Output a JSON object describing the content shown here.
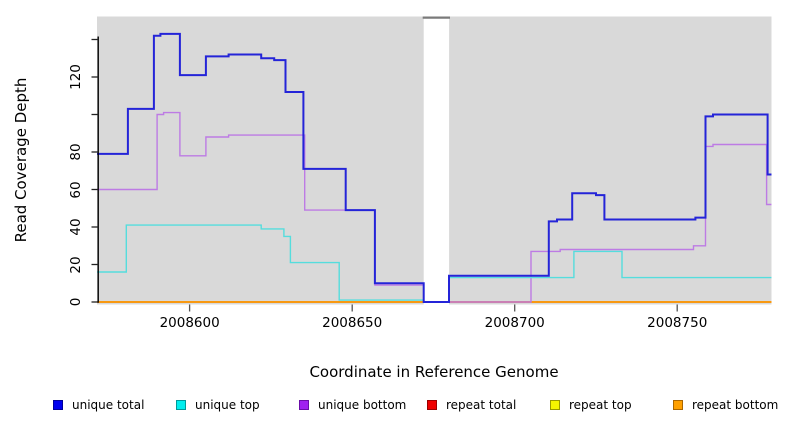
{
  "axes": {
    "y": {
      "label": "Read Coverage Depth",
      "ticks": [
        {
          "v": 0,
          "label": "0"
        },
        {
          "v": 20,
          "label": "20"
        },
        {
          "v": 40,
          "label": "40"
        },
        {
          "v": 60,
          "label": "60"
        },
        {
          "v": 80,
          "label": "80"
        },
        {
          "v": 100,
          "label": ""
        },
        {
          "v": 120,
          "label": "120"
        },
        {
          "v": 140,
          "label": ""
        }
      ]
    },
    "x": {
      "label": "Coordinate in Reference Genome",
      "ticks": [
        {
          "v": 2008600,
          "label": "2008600"
        },
        {
          "v": 2008650,
          "label": "2008650"
        },
        {
          "v": 2008700,
          "label": "2008700"
        },
        {
          "v": 2008750,
          "label": "2008750"
        }
      ]
    }
  },
  "legend": {
    "items": [
      {
        "label": "unique total",
        "fill": "#0000EE",
        "border": "#000099"
      },
      {
        "label": "unique top",
        "fill": "#00EEEE",
        "border": "#009999"
      },
      {
        "label": "unique bottom",
        "fill": "#A020F0",
        "border": "#6A0DA8"
      },
      {
        "label": "repeat total",
        "fill": "#EE0000",
        "border": "#990000"
      },
      {
        "label": "repeat top",
        "fill": "#F5F500",
        "border": "#999900"
      },
      {
        "label": "repeat bottom",
        "fill": "#FFA000",
        "border": "#AA6600"
      }
    ]
  },
  "chart_data": {
    "type": "line",
    "step": true,
    "title": "",
    "xlabel": "Coordinate in Reference Genome",
    "ylabel": "Read Coverage Depth",
    "xlim": [
      2008571.5,
      2008779
    ],
    "ylim": [
      0,
      148
    ],
    "grid": false,
    "plot_bg": "#D9D9D9",
    "gap_region": [
      2008672,
      2008679.8
    ],
    "series": [
      {
        "name": "repeat top",
        "color": "#F5F500",
        "width": 1.4,
        "points": [
          [
            2008571.5,
            0
          ],
          [
            2008779,
            0
          ]
        ]
      },
      {
        "name": "repeat total",
        "color": "#DD2222",
        "width": 1.4,
        "points": [
          [
            2008571.5,
            0
          ],
          [
            2008779,
            0
          ]
        ]
      },
      {
        "name": "repeat bottom",
        "color": "#FFA000",
        "width": 1.6,
        "points": [
          [
            2008571.5,
            0
          ],
          [
            2008779,
            0
          ]
        ]
      },
      {
        "name": "unique bottom",
        "color": "#BD7BE4",
        "width": 1.4,
        "points": [
          [
            2008571.5,
            60
          ],
          [
            2008590,
            100
          ],
          [
            2008592,
            101
          ],
          [
            2008597,
            78
          ],
          [
            2008605,
            88
          ],
          [
            2008612,
            89
          ],
          [
            2008635.4,
            49
          ],
          [
            2008657,
            9
          ],
          [
            2008672,
            0
          ],
          [
            2008705,
            27
          ],
          [
            2008714,
            28
          ],
          [
            2008755,
            30
          ],
          [
            2008758.7,
            83
          ],
          [
            2008761,
            84
          ],
          [
            2008777.5,
            52
          ],
          [
            2008779,
            52
          ]
        ]
      },
      {
        "name": "unique top",
        "color": "#55DDDD",
        "width": 1.4,
        "points": [
          [
            2008571.5,
            16
          ],
          [
            2008580.5,
            41
          ],
          [
            2008622,
            39
          ],
          [
            2008629,
            35
          ],
          [
            2008631,
            21
          ],
          [
            2008646,
            1
          ],
          [
            2008672,
            0
          ],
          [
            2008679.8,
            13
          ],
          [
            2008718.2,
            27
          ],
          [
            2008733,
            13
          ],
          [
            2008779,
            13
          ]
        ]
      },
      {
        "name": "unique total",
        "color": "#2424D8",
        "width": 2,
        "points": [
          [
            2008571.5,
            79
          ],
          [
            2008581,
            103
          ],
          [
            2008589,
            142
          ],
          [
            2008591,
            143
          ],
          [
            2008597,
            121
          ],
          [
            2008605,
            131
          ],
          [
            2008612,
            132
          ],
          [
            2008622,
            130
          ],
          [
            2008626,
            129
          ],
          [
            2008629.5,
            112
          ],
          [
            2008635,
            71
          ],
          [
            2008648,
            49
          ],
          [
            2008657,
            10
          ],
          [
            2008672,
            0
          ],
          [
            2008679.8,
            14
          ],
          [
            2008710.5,
            43
          ],
          [
            2008713,
            44
          ],
          [
            2008717.7,
            58
          ],
          [
            2008725,
            57
          ],
          [
            2008727.6,
            44
          ],
          [
            2008755.6,
            45
          ],
          [
            2008758.7,
            99
          ],
          [
            2008761,
            100
          ],
          [
            2008777.8,
            68
          ],
          [
            2008779,
            68
          ]
        ]
      }
    ]
  }
}
